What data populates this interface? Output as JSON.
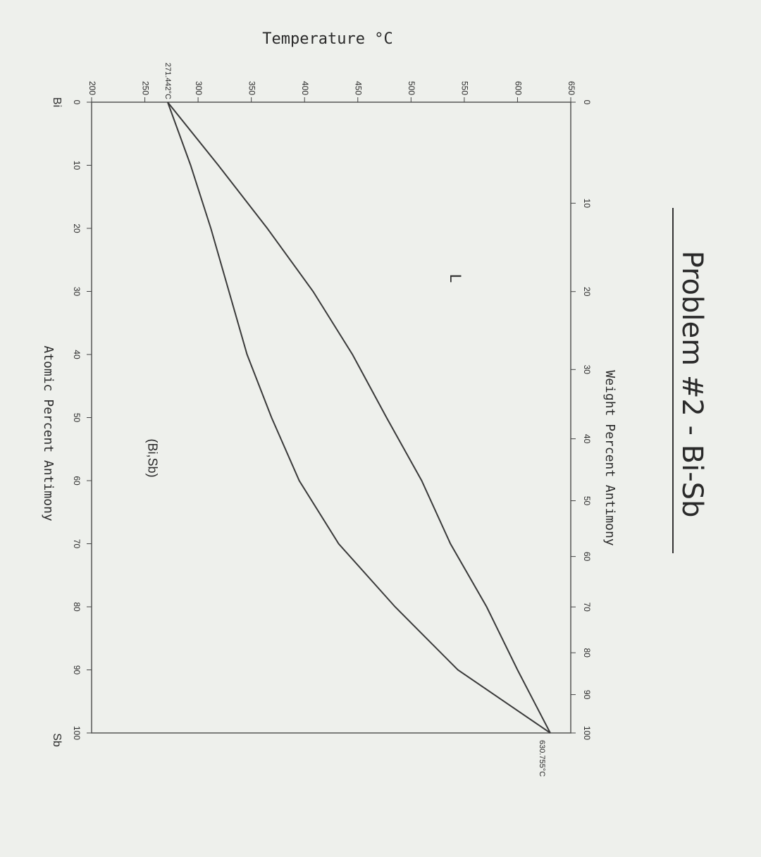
{
  "chart_data": {
    "type": "line",
    "title": "Problem #2 - Bi-Sb",
    "xlabel": "Atomic Percent Antimony",
    "x2label": "Weight Percent Antimony",
    "ylabel": "Temperature °C",
    "x": [
      0,
      10,
      20,
      30,
      40,
      50,
      60,
      70,
      80,
      90,
      100
    ],
    "series": [
      {
        "color": "#3a3a3a",
        "values": [
          271.442,
          319,
          365,
          408,
          445,
          477,
          510,
          537,
          571,
          600,
          630.755
        ]
      },
      {
        "color": "#3a3a3a",
        "values": [
          271.442,
          293,
          312,
          329,
          346,
          369,
          395,
          432,
          485,
          544,
          630.755
        ]
      }
    ],
    "xlim": [
      0,
      100
    ],
    "ylim": [
      200,
      650
    ],
    "xticks": [
      0,
      10,
      20,
      30,
      40,
      50,
      60,
      70,
      80,
      90,
      100
    ],
    "yticks": [
      200,
      250,
      300,
      350,
      400,
      450,
      500,
      550,
      600,
      650
    ],
    "x2ticks": [
      0,
      10,
      20,
      30,
      40,
      50,
      60,
      70,
      80,
      90,
      100
    ],
    "annotations": [
      "L",
      "(Bi,Sb)",
      "Bi",
      "Sb",
      "271.442°C",
      "630.755°C"
    ]
  }
}
